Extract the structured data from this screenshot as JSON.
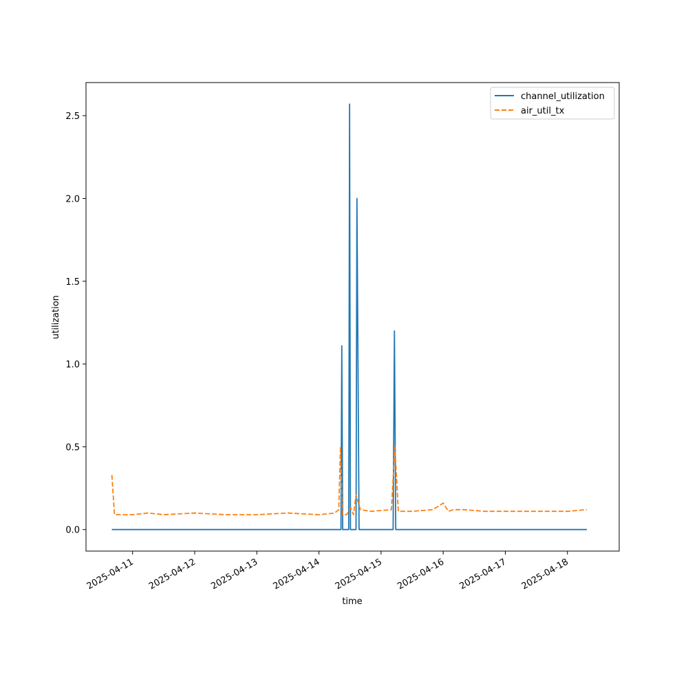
{
  "chart_data": {
    "type": "line",
    "title": "",
    "xlabel": "time",
    "ylabel": "utilization",
    "xlim": [
      "2025-04-10T06:00",
      "2025-04-18T20:00"
    ],
    "ylim": [
      -0.13,
      2.7
    ],
    "x_ticks": [
      "2025-04-11",
      "2025-04-12",
      "2025-04-13",
      "2025-04-14",
      "2025-04-15",
      "2025-04-16",
      "2025-04-17",
      "2025-04-18"
    ],
    "y_ticks": [
      0.0,
      0.5,
      1.0,
      1.5,
      2.0,
      2.5
    ],
    "y_tick_labels": [
      "0.0",
      "0.5",
      "1.0",
      "1.5",
      "2.0",
      "2.5"
    ],
    "grid": false,
    "legend_position": "top-right",
    "series": [
      {
        "name": "channel_utilization",
        "color": "#1f77b4",
        "style": "solid",
        "points": [
          [
            "2025-04-10T16:00",
            0.0
          ],
          [
            "2025-04-14T08:30",
            0.0
          ],
          [
            "2025-04-14T08:50",
            1.11
          ],
          [
            "2025-04-14T09:10",
            0.0
          ],
          [
            "2025-04-14T11:30",
            0.0
          ],
          [
            "2025-04-14T11:50",
            2.57
          ],
          [
            "2025-04-14T12:10",
            0.0
          ],
          [
            "2025-04-14T14:20",
            0.0
          ],
          [
            "2025-04-14T14:40",
            2.0
          ],
          [
            "2025-04-14T15:30",
            0.0
          ],
          [
            "2025-04-15T04:40",
            0.0
          ],
          [
            "2025-04-15T05:10",
            1.2
          ],
          [
            "2025-04-15T05:40",
            0.0
          ],
          [
            "2025-04-18T07:30",
            0.0
          ]
        ]
      },
      {
        "name": "air_util_tx",
        "color": "#ff7f0e",
        "style": "dashed",
        "points": [
          [
            "2025-04-10T16:00",
            0.33
          ],
          [
            "2025-04-10T17:00",
            0.09
          ],
          [
            "2025-04-11T00:00",
            0.09
          ],
          [
            "2025-04-11T06:00",
            0.1
          ],
          [
            "2025-04-11T12:00",
            0.09
          ],
          [
            "2025-04-12T00:00",
            0.1
          ],
          [
            "2025-04-12T12:00",
            0.09
          ],
          [
            "2025-04-13T00:00",
            0.09
          ],
          [
            "2025-04-13T12:00",
            0.1
          ],
          [
            "2025-04-14T00:00",
            0.09
          ],
          [
            "2025-04-14T06:00",
            0.1
          ],
          [
            "2025-04-14T07:40",
            0.12
          ],
          [
            "2025-04-14T08:20",
            0.5
          ],
          [
            "2025-04-14T09:00",
            0.09
          ],
          [
            "2025-04-14T10:40",
            0.09
          ],
          [
            "2025-04-14T12:20",
            0.13
          ],
          [
            "2025-04-14T13:20",
            0.09
          ],
          [
            "2025-04-14T14:20",
            0.21
          ],
          [
            "2025-04-14T16:00",
            0.12
          ],
          [
            "2025-04-14T20:00",
            0.11
          ],
          [
            "2025-04-15T04:00",
            0.12
          ],
          [
            "2025-04-15T05:20",
            0.5
          ],
          [
            "2025-04-15T06:40",
            0.11
          ],
          [
            "2025-04-15T12:00",
            0.11
          ],
          [
            "2025-04-15T20:00",
            0.12
          ],
          [
            "2025-04-16T00:00",
            0.16
          ],
          [
            "2025-04-16T02:00",
            0.11
          ],
          [
            "2025-04-16T04:00",
            0.12
          ],
          [
            "2025-04-16T08:00",
            0.12
          ],
          [
            "2025-04-16T16:00",
            0.11
          ],
          [
            "2025-04-17T00:00",
            0.11
          ],
          [
            "2025-04-17T12:00",
            0.11
          ],
          [
            "2025-04-18T00:00",
            0.11
          ],
          [
            "2025-04-18T07:30",
            0.12
          ]
        ]
      }
    ]
  }
}
